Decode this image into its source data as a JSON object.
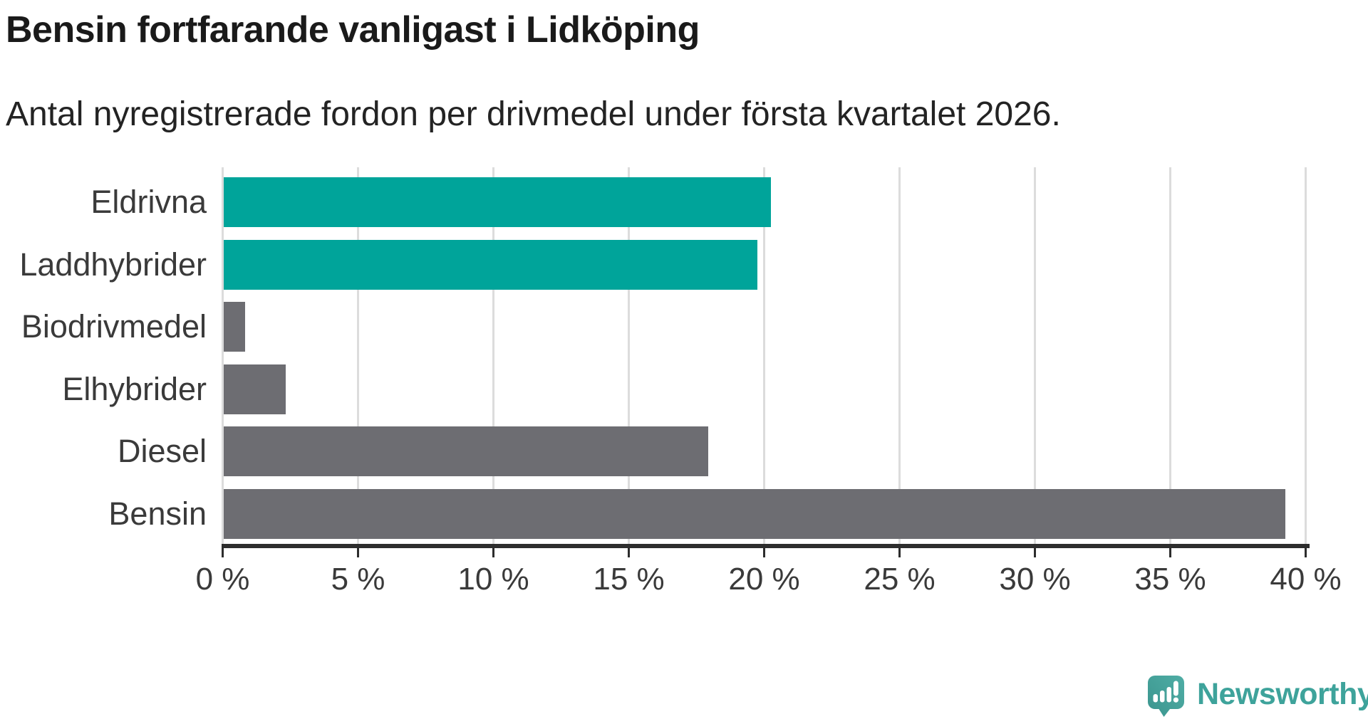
{
  "header": {
    "title": "Bensin fortfarande vanligast i Lidköping",
    "subtitle": "Antal nyregistrerade fordon per drivmedel under första kvartalet 2026."
  },
  "chart_data": {
    "type": "bar",
    "orientation": "horizontal",
    "title": "Bensin fortfarande vanligast i Lidköping",
    "subtitle": "Antal nyregistrerade fordon per drivmedel under första kvartalet 2026.",
    "categories": [
      "Eldrivna",
      "Laddhybrider",
      "Biodrivmedel",
      "Elhybrider",
      "Diesel",
      "Bensin"
    ],
    "values": [
      20.2,
      19.7,
      0.8,
      2.3,
      17.9,
      39.2
    ],
    "unit": "%",
    "bar_colors": [
      "#00A49A",
      "#00A49A",
      "#6D6D72",
      "#6D6D72",
      "#6D6D72",
      "#6D6D72"
    ],
    "xlabel": "",
    "ylabel": "",
    "xlim": [
      0,
      40
    ],
    "x_ticks": [
      0,
      5,
      10,
      15,
      20,
      25,
      30,
      35,
      40
    ],
    "x_tick_labels": [
      "0 %",
      "5 %",
      "10 %",
      "15 %",
      "20 %",
      "25 %",
      "30 %",
      "35 %",
      "40 %"
    ],
    "grid": true,
    "legend": "none"
  },
  "colors": {
    "highlight": "#00A49A",
    "neutral": "#6D6D72",
    "axis": "#2d2d2d",
    "gridline": "#dcdcdc",
    "text": "#3a3a3a",
    "title_text": "#1a1a1a",
    "logo_teal": "#3ea39b"
  },
  "branding": {
    "logo_text": "Newsworthy",
    "logo_icon": "newsworthy-speech-bubble-chart-icon"
  }
}
